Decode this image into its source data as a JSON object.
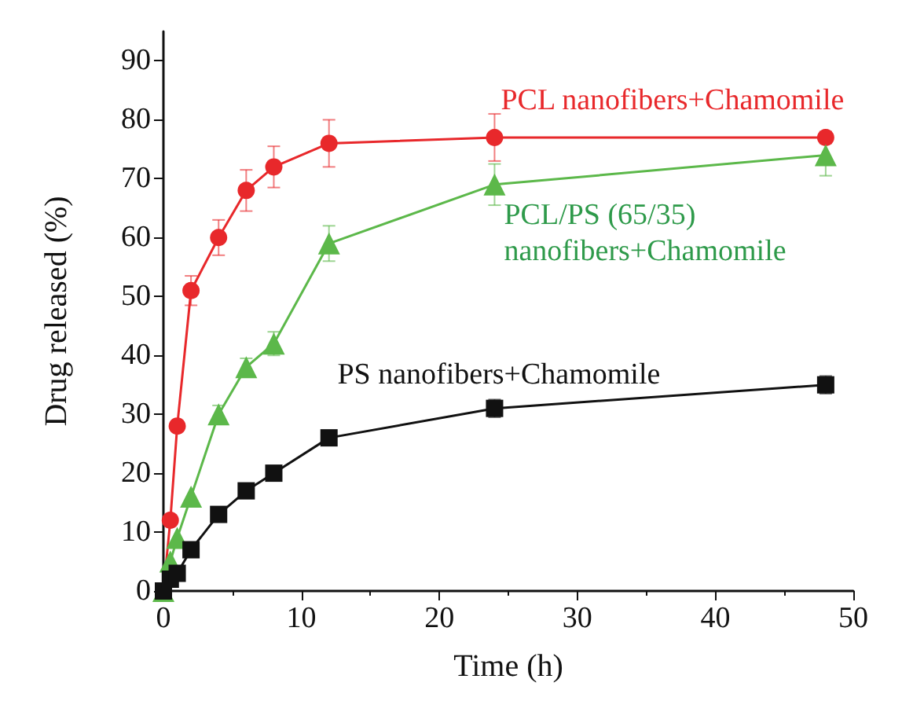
{
  "chart_data": {
    "type": "line",
    "xlabel": "Time (h)",
    "ylabel": "Drug released (%)",
    "xlim": [
      0,
      50
    ],
    "xticks": [
      0,
      10,
      20,
      30,
      40,
      50
    ],
    "ylim": [
      0,
      95
    ],
    "yticks": [
      0,
      10,
      20,
      30,
      40,
      50,
      60,
      70,
      80,
      90
    ],
    "grid": false,
    "legend": false,
    "series": [
      {
        "name": "PCL nanofibers+Chamomile",
        "color": "#e8282b",
        "marker": "circle",
        "x": [
          0,
          0.5,
          1,
          2,
          4,
          6,
          8,
          12,
          24,
          48
        ],
        "values": [
          0,
          12,
          28,
          51,
          60,
          68,
          72,
          76,
          77,
          77
        ],
        "errors": [
          null,
          null,
          null,
          2.5,
          3,
          3.5,
          3.5,
          4,
          4,
          1
        ]
      },
      {
        "name": "PCL/PS (65/35) nanofibers+Chamomile",
        "color": "#5cb84a",
        "marker": "triangle",
        "x": [
          0,
          0.5,
          1,
          2,
          4,
          6,
          8,
          12,
          24,
          48
        ],
        "values": [
          0,
          5,
          9,
          16,
          30,
          38,
          42,
          59,
          69,
          74
        ],
        "errors": [
          null,
          null,
          null,
          null,
          1.5,
          1.5,
          2,
          3,
          3.5,
          3.5
        ]
      },
      {
        "name": "PS nanofibers+Chamomile",
        "color": "#111111",
        "marker": "square",
        "x": [
          0,
          0.5,
          1,
          2,
          4,
          6,
          8,
          12,
          24,
          48
        ],
        "values": [
          0,
          2,
          3,
          7,
          13,
          17,
          20,
          26,
          31,
          35
        ],
        "errors": [
          null,
          null,
          null,
          null,
          null,
          null,
          null,
          null,
          1.5,
          1.5
        ]
      }
    ]
  }
}
